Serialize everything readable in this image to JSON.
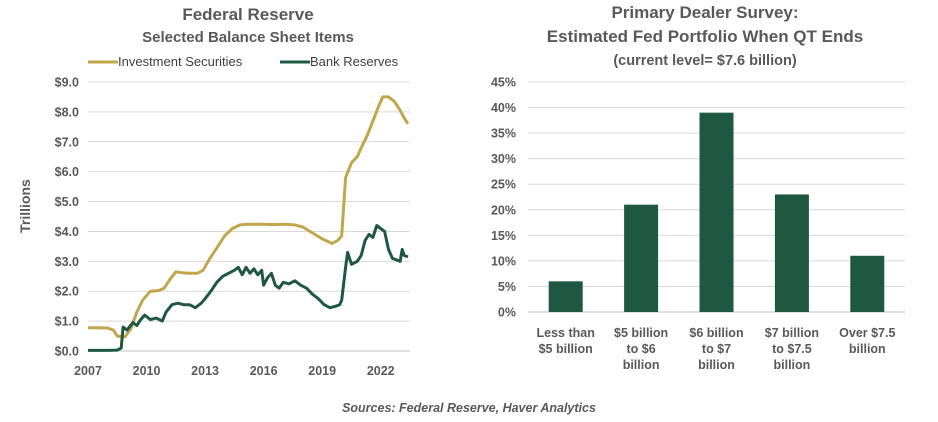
{
  "source_note": "Sources: Federal Reserve, Haver Analytics",
  "colors": {
    "gold": "#C2A64C",
    "green": "#1F5841",
    "grid": "#d9d9d9",
    "text": "#595959"
  },
  "chart_data": [
    {
      "type": "line",
      "title": "Federal Reserve",
      "subtitle": "Selected Balance Sheet Items",
      "ylabel": "Trillions",
      "ylim": [
        0,
        9
      ],
      "xlim": [
        2007,
        2023.5
      ],
      "y_ticks": [
        "$0.0",
        "$1.0",
        "$2.0",
        "$3.0",
        "$4.0",
        "$5.0",
        "$6.0",
        "$7.0",
        "$8.0",
        "$9.0"
      ],
      "x_ticks": [
        "2007",
        "2010",
        "2013",
        "2016",
        "2019",
        "2022"
      ],
      "legend_position": "top",
      "series": [
        {
          "name": "Investment Securities",
          "color": "#C2A64C",
          "points": [
            [
              2007.0,
              0.78
            ],
            [
              2007.5,
              0.78
            ],
            [
              2008.0,
              0.77
            ],
            [
              2008.3,
              0.7
            ],
            [
              2008.5,
              0.5
            ],
            [
              2008.9,
              0.48
            ],
            [
              2009.2,
              0.75
            ],
            [
              2009.5,
              1.3
            ],
            [
              2009.8,
              1.7
            ],
            [
              2010.2,
              2.0
            ],
            [
              2010.6,
              2.02
            ],
            [
              2010.9,
              2.1
            ],
            [
              2011.2,
              2.4
            ],
            [
              2011.5,
              2.65
            ],
            [
              2011.8,
              2.62
            ],
            [
              2012.2,
              2.6
            ],
            [
              2012.6,
              2.6
            ],
            [
              2012.9,
              2.7
            ],
            [
              2013.2,
              3.05
            ],
            [
              2013.6,
              3.45
            ],
            [
              2014.0,
              3.85
            ],
            [
              2014.4,
              4.1
            ],
            [
              2014.8,
              4.22
            ],
            [
              2015.2,
              4.24
            ],
            [
              2016.0,
              4.24
            ],
            [
              2016.5,
              4.23
            ],
            [
              2017.0,
              4.24
            ],
            [
              2017.6,
              4.22
            ],
            [
              2018.0,
              4.15
            ],
            [
              2018.5,
              3.95
            ],
            [
              2019.0,
              3.75
            ],
            [
              2019.5,
              3.6
            ],
            [
              2019.8,
              3.7
            ],
            [
              2020.0,
              3.85
            ],
            [
              2020.2,
              5.8
            ],
            [
              2020.5,
              6.3
            ],
            [
              2020.8,
              6.5
            ],
            [
              2021.0,
              6.8
            ],
            [
              2021.3,
              7.2
            ],
            [
              2021.6,
              7.7
            ],
            [
              2021.9,
              8.2
            ],
            [
              2022.1,
              8.5
            ],
            [
              2022.4,
              8.5
            ],
            [
              2022.7,
              8.35
            ],
            [
              2023.0,
              8.05
            ],
            [
              2023.2,
              7.8
            ],
            [
              2023.4,
              7.6
            ]
          ]
        },
        {
          "name": "Bank Reserves",
          "color": "#1F5841",
          "points": [
            [
              2007.0,
              0.02
            ],
            [
              2007.5,
              0.02
            ],
            [
              2008.0,
              0.02
            ],
            [
              2008.5,
              0.03
            ],
            [
              2008.7,
              0.1
            ],
            [
              2008.8,
              0.8
            ],
            [
              2009.0,
              0.7
            ],
            [
              2009.3,
              0.95
            ],
            [
              2009.5,
              0.85
            ],
            [
              2009.7,
              1.05
            ],
            [
              2009.9,
              1.2
            ],
            [
              2010.2,
              1.05
            ],
            [
              2010.5,
              1.1
            ],
            [
              2010.8,
              1.0
            ],
            [
              2011.0,
              1.3
            ],
            [
              2011.3,
              1.55
            ],
            [
              2011.6,
              1.6
            ],
            [
              2011.9,
              1.55
            ],
            [
              2012.2,
              1.55
            ],
            [
              2012.5,
              1.45
            ],
            [
              2012.8,
              1.6
            ],
            [
              2013.0,
              1.75
            ],
            [
              2013.3,
              2.0
            ],
            [
              2013.6,
              2.3
            ],
            [
              2013.9,
              2.5
            ],
            [
              2014.2,
              2.6
            ],
            [
              2014.5,
              2.7
            ],
            [
              2014.7,
              2.8
            ],
            [
              2014.9,
              2.55
            ],
            [
              2015.1,
              2.8
            ],
            [
              2015.3,
              2.6
            ],
            [
              2015.5,
              2.75
            ],
            [
              2015.7,
              2.55
            ],
            [
              2015.9,
              2.7
            ],
            [
              2016.0,
              2.2
            ],
            [
              2016.2,
              2.45
            ],
            [
              2016.4,
              2.6
            ],
            [
              2016.6,
              2.2
            ],
            [
              2016.8,
              2.1
            ],
            [
              2017.0,
              2.3
            ],
            [
              2017.3,
              2.25
            ],
            [
              2017.6,
              2.35
            ],
            [
              2017.9,
              2.2
            ],
            [
              2018.2,
              2.1
            ],
            [
              2018.5,
              1.9
            ],
            [
              2018.8,
              1.75
            ],
            [
              2019.1,
              1.55
            ],
            [
              2019.4,
              1.45
            ],
            [
              2019.7,
              1.5
            ],
            [
              2019.9,
              1.55
            ],
            [
              2020.0,
              1.7
            ],
            [
              2020.2,
              2.8
            ],
            [
              2020.3,
              3.3
            ],
            [
              2020.5,
              2.9
            ],
            [
              2020.8,
              3.0
            ],
            [
              2021.0,
              3.2
            ],
            [
              2021.2,
              3.7
            ],
            [
              2021.4,
              3.9
            ],
            [
              2021.6,
              3.8
            ],
            [
              2021.8,
              4.2
            ],
            [
              2022.0,
              4.1
            ],
            [
              2022.2,
              4.0
            ],
            [
              2022.4,
              3.4
            ],
            [
              2022.6,
              3.1
            ],
            [
              2022.8,
              3.05
            ],
            [
              2023.0,
              3.0
            ],
            [
              2023.1,
              3.4
            ],
            [
              2023.2,
              3.2
            ],
            [
              2023.4,
              3.15
            ]
          ]
        }
      ]
    },
    {
      "type": "bar",
      "title": "Primary  Dealer Survey:",
      "subtitle": "Estimated  Fed Portfolio When QT Ends",
      "note": "(current level= $7.6 billion)",
      "ylim": [
        0,
        45
      ],
      "y_ticks": [
        "0%",
        "5%",
        "10%",
        "15%",
        "20%",
        "25%",
        "30%",
        "35%",
        "40%",
        "45%"
      ],
      "bar_color": "#1F5841",
      "categories": [
        [
          "Less than",
          "$5 billion"
        ],
        [
          "$5 billion",
          "to $6",
          "billion"
        ],
        [
          "$6 billion",
          "to $7",
          "billion"
        ],
        [
          "$7 billion",
          "to $7.5",
          "billion"
        ],
        [
          "Over $7.5",
          "billion"
        ]
      ],
      "values": [
        6,
        21,
        39,
        23,
        11
      ]
    }
  ]
}
